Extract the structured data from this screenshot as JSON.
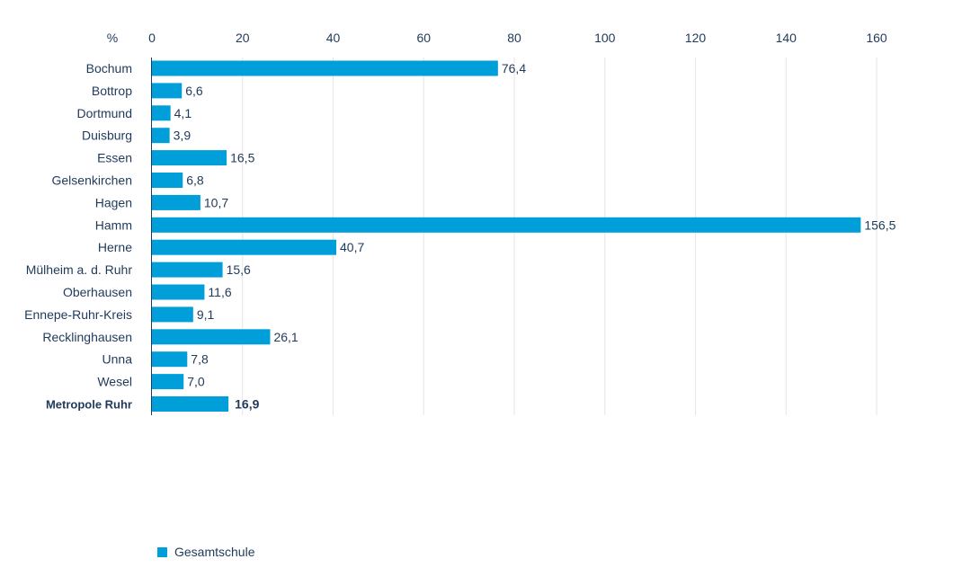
{
  "chart_data": {
    "type": "bar",
    "orientation": "horizontal",
    "unit_label": "%",
    "categories": [
      "Bochum",
      "Bottrop",
      "Dortmund",
      "Duisburg",
      "Essen",
      "Gelsenkirchen",
      "Hagen",
      "Hamm",
      "Herne",
      "Mülheim a. d. Ruhr",
      "Oberhausen",
      "Ennepe-Ruhr-Kreis",
      "Recklinghausen",
      "Unna",
      "Wesel",
      "Metropole Ruhr"
    ],
    "value_labels": [
      "76,4",
      "6,6",
      "4,1",
      "3,9",
      "16,5",
      "6,8",
      "10,7",
      "156,5",
      "40,7",
      "15,6",
      "11,6",
      "9,1",
      "26,1",
      "7,8",
      "7,0",
      "16,9"
    ],
    "series": [
      {
        "name": "Gesamtschule",
        "values": [
          76.4,
          6.6,
          4.1,
          3.9,
          16.5,
          6.8,
          10.7,
          156.5,
          40.7,
          15.6,
          11.6,
          9.1,
          26.1,
          7.8,
          7.0,
          16.9
        ]
      }
    ],
    "highlight_category": "Metropole Ruhr",
    "xlim": [
      0,
      160
    ],
    "xticks": [
      "0",
      "20",
      "40",
      "60",
      "80",
      "100",
      "120",
      "140",
      "160"
    ],
    "grid": true,
    "legend_position": "bottom-left",
    "bar_color": "#009fda"
  }
}
